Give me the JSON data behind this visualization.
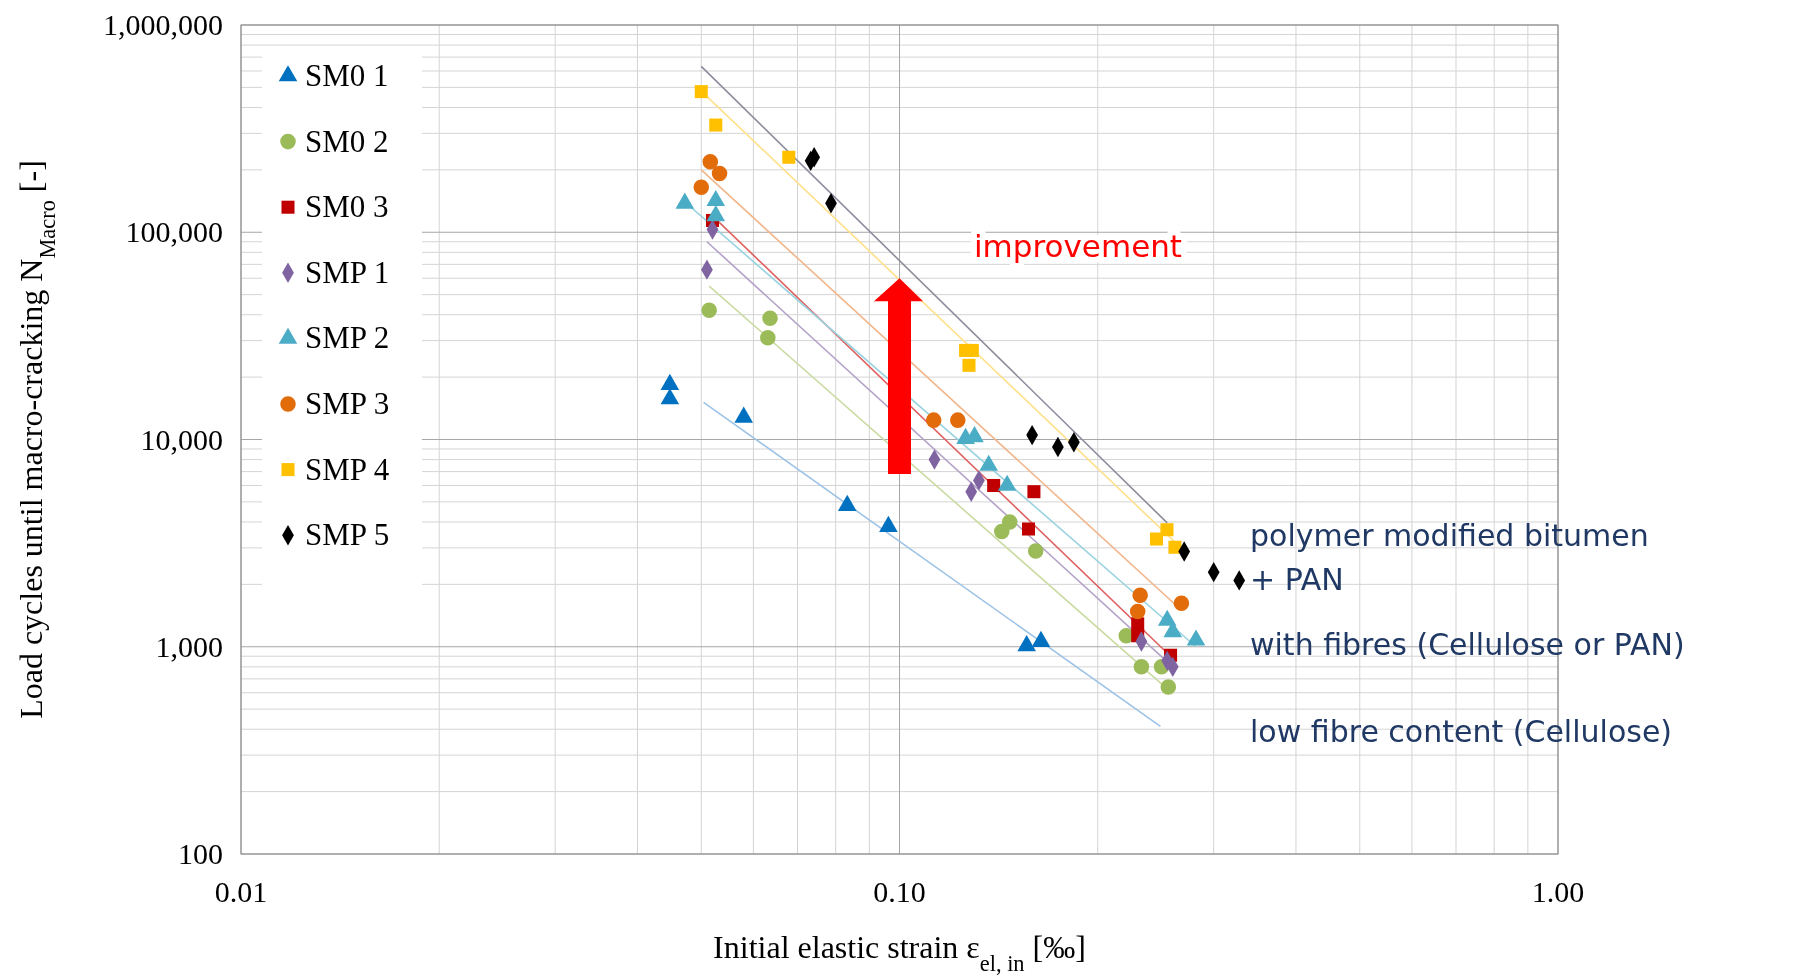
{
  "chart_data": {
    "type": "scatter",
    "log": "xy",
    "grid": true,
    "legend": "top left",
    "xlabel": "Initial elastic strain ε$_{el, in}$ [‰]",
    "ylabel": "Load cycles until macro-cracking N$_{Macro}$ [-]",
    "xlim": [
      0.01,
      1
    ],
    "xticks": [
      0.01,
      {
        "value": 0.1,
        "label": "0.10"
      },
      {
        "value": 1,
        "label": "1.00"
      }
    ],
    "ylim": [
      100,
      1000000
    ],
    "yticks": [
      100,
      {
        "value": 1000,
        "label": "1,000"
      },
      {
        "value": 10000,
        "label": "10,000"
      },
      {
        "value": 100000,
        "label": "100,000"
      },
      {
        "value": 1000000,
        "label": "1,000,000"
      }
    ],
    "annotations": [
      {
        "text": "improvement",
        "x": 0.1,
        "y": 60000
      },
      "polymer modified bitumen\n+ PAN",
      "with fibres (Cellulose or PAN)",
      "low fibre content (Cellulose)"
    ],
    "series": [
      {
        "name": "SM0 1",
        "marker": "triangle",
        "color": "#0070c0",
        "x": [
          0.0448,
          0.0448,
          0.058,
          0.0833,
          0.0962,
          0.156,
          0.164
        ],
        "values": [
          18400,
          15700,
          12800,
          4800,
          3800,
          1010,
          1060
        ]
      },
      {
        "name": "SM0 2",
        "marker": "circle",
        "color": "#9bbb59",
        "x": [
          0.0514,
          0.0636,
          0.0631,
          0.143,
          0.147,
          0.161,
          0.221,
          0.233,
          0.25,
          0.256
        ],
        "values": [
          42000,
          38500,
          31000,
          3600,
          4000,
          2900,
          1130,
          800,
          800,
          640
        ]
      },
      {
        "name": "SM0 3",
        "marker": "square",
        "color": "#c00000",
        "x": [
          0.052,
          0.139,
          0.16,
          0.157,
          0.23,
          0.23,
          0.258
        ],
        "values": [
          114000,
          6000,
          5600,
          3700,
          1290,
          1130,
          910
        ]
      },
      {
        "name": "SMP 1",
        "marker": "diamond",
        "color": "#8064a2",
        "x": [
          0.052,
          0.051,
          0.113,
          0.1285,
          0.132,
          0.233,
          0.255,
          0.26
        ],
        "values": [
          103000,
          66000,
          8000,
          5600,
          6350,
          1060,
          855,
          800
        ]
      },
      {
        "name": "SMP 2",
        "marker": "triangle",
        "color": "#4bacc6",
        "x": [
          0.0472,
          0.0526,
          0.0526,
          0.126,
          0.13,
          0.1366,
          0.1457,
          0.255,
          0.26,
          0.282
        ],
        "values": [
          138000,
          142000,
          120000,
          10100,
          10300,
          7500,
          6000,
          1340,
          1180,
          1075
        ]
      },
      {
        "name": "SMP 3",
        "marker": "circle",
        "color": "#e36c0a",
        "x": [
          0.05,
          0.0516,
          0.0533,
          0.1127,
          0.1226,
          0.232,
          0.23,
          0.268
        ],
        "values": [
          165000,
          219000,
          192000,
          12400,
          12400,
          1770,
          1480,
          1620
        ]
      },
      {
        "name": "SMP 4",
        "marker": "square",
        "color": "#ffc000",
        "x": [
          0.05,
          0.0526,
          0.0679,
          0.126,
          0.129,
          0.1275,
          0.2456,
          0.2548,
          0.262
        ],
        "values": [
          477000,
          329000,
          230000,
          26900,
          26900,
          22800,
          3310,
          3670,
          3020
        ]
      },
      {
        "name": "SMP 5",
        "marker": "diamond",
        "color": "#000000",
        "x": [
          0.0733,
          0.0742,
          0.0787,
          0.159,
          0.174,
          0.184,
          0.2706,
          0.3,
          0.328
        ],
        "values": [
          221000,
          230000,
          138000,
          10500,
          9200,
          9700,
          2880,
          2290,
          2090
        ]
      },
      {
        "type": "line",
        "color": "#9dc3e6",
        "x": [
          0.0504,
          0.249
        ],
        "values": [
          15100,
          413
        ]
      },
      {
        "type": "line",
        "color": "#c9dba0",
        "x": [
          0.0514,
          0.256
        ],
        "values": [
          55000,
          620
        ]
      },
      {
        "type": "line",
        "color": "#e06060",
        "x": [
          0.052,
          0.258
        ],
        "values": [
          120000,
          900
        ]
      },
      {
        "type": "line",
        "color": "#b3a2c7",
        "x": [
          0.051,
          0.26
        ],
        "values": [
          90000,
          800
        ]
      },
      {
        "type": "line",
        "color": "#9ad3e0",
        "x": [
          0.0472,
          0.282
        ],
        "values": [
          140000,
          1000
        ]
      },
      {
        "type": "line",
        "color": "#f2b58a",
        "x": [
          0.05,
          0.268
        ],
        "values": [
          200000,
          1500
        ]
      },
      {
        "type": "line",
        "color": "#ffe08a",
        "x": [
          0.05,
          0.262
        ],
        "values": [
          480000,
          3200
        ]
      },
      {
        "type": "line",
        "color": "#8c8c9c",
        "x": [
          0.05,
          0.255
        ],
        "values": [
          631000,
          3960
        ]
      }
    ]
  }
}
